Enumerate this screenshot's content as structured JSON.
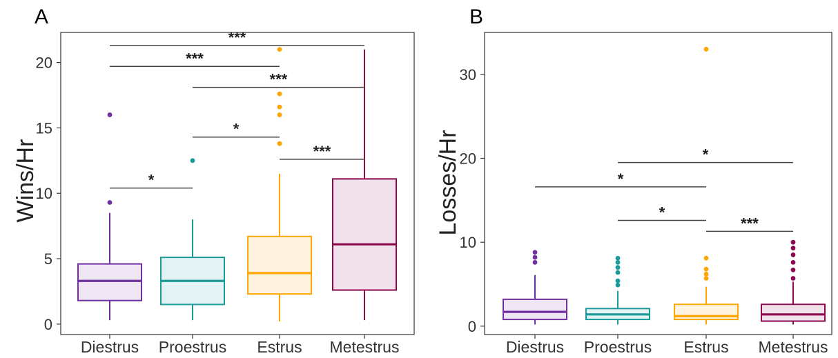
{
  "chart_data": [
    {
      "panel_label": "A",
      "type": "boxplot",
      "ylabel": "Wins/Hr",
      "xlabel": "",
      "categories": [
        "Diestrus",
        "Proestrus",
        "Estrus",
        "Metestrus"
      ],
      "ylim": [
        -0.8,
        22.3
      ],
      "yticks": [
        0,
        5,
        10,
        15,
        20
      ],
      "grid": false,
      "colors": [
        "#7030A0",
        "#1A9A9A",
        "#FFA500",
        "#8B0A50"
      ],
      "boxes": [
        {
          "category": "Diestrus",
          "min": 0.3,
          "q1": 1.8,
          "median": 3.3,
          "q3": 4.6,
          "max": 8.5,
          "outliers": [
            9.3,
            16.0
          ]
        },
        {
          "category": "Proestrus",
          "min": 0.3,
          "q1": 1.5,
          "median": 3.3,
          "q3": 5.1,
          "max": 8.0,
          "outliers": [
            12.5
          ]
        },
        {
          "category": "Estrus",
          "min": 0.2,
          "q1": 2.3,
          "median": 3.9,
          "q3": 6.7,
          "max": 11.5,
          "outliers": [
            13.8,
            16.0,
            16.6,
            17.6,
            21.0
          ]
        },
        {
          "category": "Metestrus",
          "min": 0.3,
          "q1": 2.6,
          "median": 6.1,
          "q3": 11.1,
          "max": 21.0,
          "outliers": []
        }
      ],
      "significance": [
        {
          "from": 0,
          "to": 3,
          "y": 21.3,
          "label": "***"
        },
        {
          "from": 0,
          "to": 2,
          "y": 19.7,
          "label": "***"
        },
        {
          "from": 1,
          "to": 3,
          "y": 18.1,
          "label": "***"
        },
        {
          "from": 1,
          "to": 2,
          "y": 14.3,
          "label": "*"
        },
        {
          "from": 2,
          "to": 3,
          "y": 12.6,
          "label": "***"
        },
        {
          "from": 0,
          "to": 1,
          "y": 10.4,
          "label": "*"
        }
      ]
    },
    {
      "panel_label": "B",
      "type": "boxplot",
      "ylabel": "Losses/Hr",
      "xlabel": "",
      "categories": [
        "Diestrus",
        "Proestrus",
        "Estrus",
        "Metestrus"
      ],
      "ylim": [
        -1.0,
        35.0
      ],
      "yticks": [
        0,
        10,
        20,
        30
      ],
      "grid": false,
      "colors": [
        "#7030A0",
        "#1A9A9A",
        "#FFA500",
        "#8B0A50"
      ],
      "boxes": [
        {
          "category": "Diestrus",
          "min": 0.2,
          "q1": 0.8,
          "median": 1.7,
          "q3": 3.2,
          "max": 6.1,
          "outliers": [
            7.6,
            8.2,
            8.8
          ]
        },
        {
          "category": "Proestrus",
          "min": 0.2,
          "q1": 0.8,
          "median": 1.4,
          "q3": 2.1,
          "max": 4.2,
          "outliers": [
            4.9,
            5.4,
            6.4,
            7.0,
            7.6,
            8.1
          ]
        },
        {
          "category": "Estrus",
          "min": 0.2,
          "q1": 0.8,
          "median": 1.2,
          "q3": 2.6,
          "max": 4.7,
          "outliers": [
            5.7,
            6.2,
            6.8,
            8.1,
            33.0
          ]
        },
        {
          "category": "Metestrus",
          "min": 0.2,
          "q1": 0.6,
          "median": 1.4,
          "q3": 2.6,
          "max": 5.3,
          "outliers": [
            5.7,
            6.7,
            7.6,
            8.5,
            9.3,
            10.0
          ]
        }
      ],
      "significance": [
        {
          "from": 1,
          "to": 3,
          "y": 19.5,
          "label": "*"
        },
        {
          "from": 0,
          "to": 2,
          "y": 16.6,
          "label": "*"
        },
        {
          "from": 1,
          "to": 2,
          "y": 12.6,
          "label": "*"
        },
        {
          "from": 2,
          "to": 3,
          "y": 11.3,
          "label": "***"
        }
      ]
    }
  ]
}
